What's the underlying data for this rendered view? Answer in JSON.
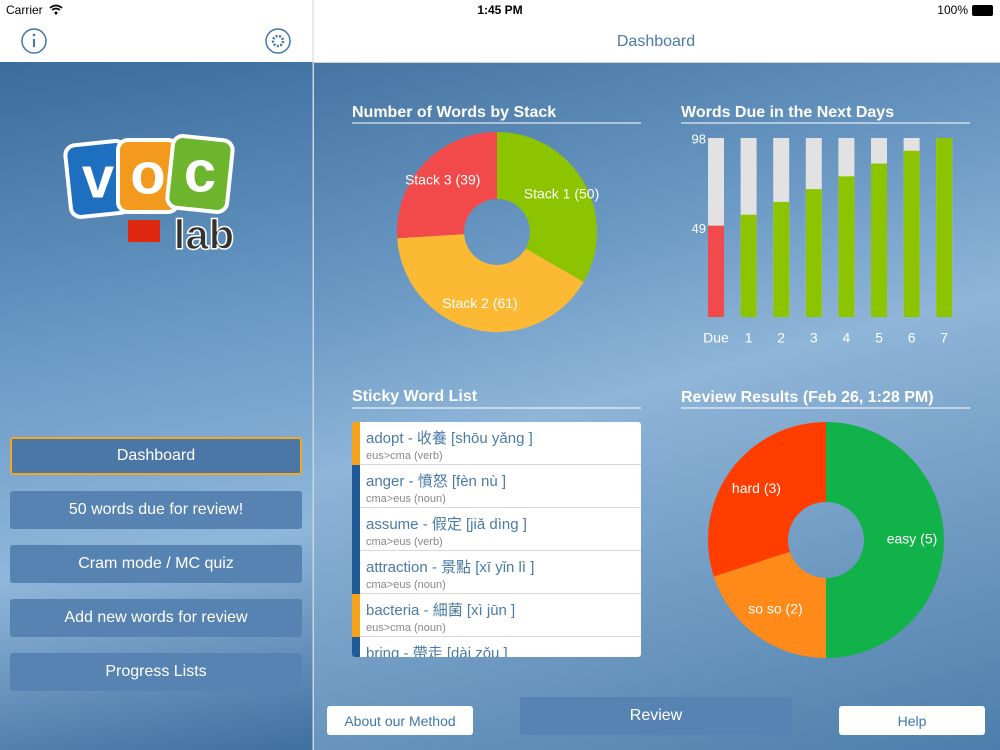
{
  "status": {
    "carrier": "Carrier",
    "time": "1:45 PM",
    "battery": "100%"
  },
  "header": {
    "title": "Dashboard"
  },
  "logo": {
    "letters": [
      "v",
      "o",
      "c"
    ],
    "suffix": "lab"
  },
  "sidebar": {
    "buttons": [
      "Dashboard",
      "50 words due for review!",
      "Cram mode / MC quiz",
      "Add new words for review",
      "Progress Lists"
    ]
  },
  "chart_data": [
    {
      "type": "pie",
      "title": "Number of Words by Stack",
      "categories": [
        "Stack 1 (50)",
        "Stack 2 (61)",
        "Stack 3 (39)"
      ],
      "values": [
        50,
        61,
        39
      ],
      "colors": [
        "#8cc400",
        "#fbb934",
        "#f24a4a"
      ]
    },
    {
      "type": "bar",
      "title": "Words Due in the Next Days",
      "categories": [
        "Due",
        "1",
        "2",
        "3",
        "4",
        "5",
        "6",
        "7"
      ],
      "values": [
        50,
        56,
        63,
        70,
        77,
        84,
        91,
        98
      ],
      "colors": [
        "#f24a4a",
        "#8cc400",
        "#8cc400",
        "#8cc400",
        "#8cc400",
        "#8cc400",
        "#8cc400",
        "#8cc400"
      ],
      "ylim": [
        0,
        98
      ],
      "yticks": [
        49,
        98
      ]
    },
    {
      "type": "pie",
      "title": "Review Results (Feb 26, 1:28 PM)",
      "categories": [
        "easy (5)",
        "so so (2)",
        "hard (3)"
      ],
      "values": [
        5,
        2,
        3
      ],
      "colors": [
        "#12b24a",
        "#ff8a1a",
        "#ff3d00"
      ]
    }
  ],
  "sticky_list": {
    "title": "Sticky Word List",
    "rows": [
      {
        "word": "adopt - 收養 [shōu yǎng ]",
        "detail": "eus>cma (verb)",
        "color": "#f5a21b"
      },
      {
        "word": "anger - 憤怒 [fèn nù ]",
        "detail": "cma>eus (noun)",
        "color": "#1f5a96"
      },
      {
        "word": "assume - 假定 [jiǎ dìng ]",
        "detail": "cma>eus (verb)",
        "color": "#1f5a96"
      },
      {
        "word": "attraction - 景點 [xī yǐn lì ]",
        "detail": "cma>eus (noun)",
        "color": "#1f5a96"
      },
      {
        "word": "bacteria - 細菌 [xì jūn ]",
        "detail": "eus>cma (noun)",
        "color": "#f5a21b"
      },
      {
        "word": "bring - 帶走 [dài zǒu ]",
        "detail": "",
        "color": "#1f5a96"
      }
    ]
  },
  "footer": {
    "buttons": [
      "About our Method",
      "Review",
      "Help"
    ]
  }
}
